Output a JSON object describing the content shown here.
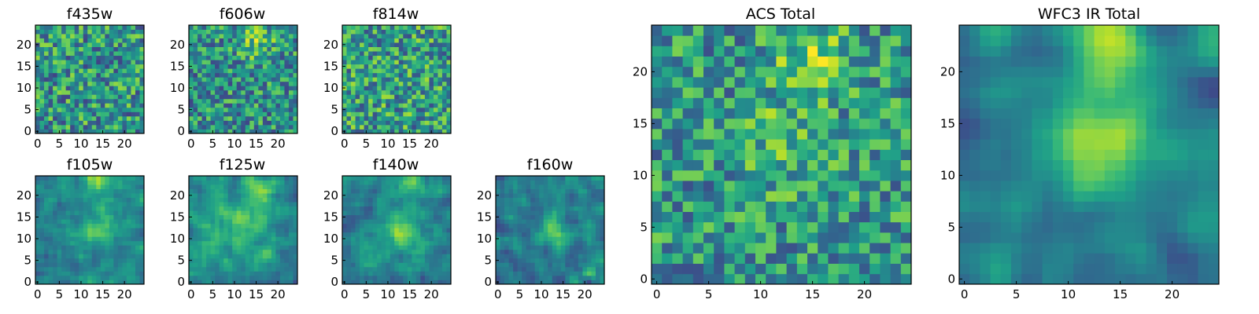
{
  "chart_data": {
    "type": "heatmap",
    "colormap": "viridis",
    "grid_size": 25,
    "panels": [
      {
        "id": "f435w",
        "title": "f435w",
        "x_ticks": [
          0,
          5,
          10,
          15,
          20
        ],
        "y_ticks": [
          0,
          5,
          10,
          15,
          20
        ],
        "xlim": [
          -0.5,
          24.5
        ],
        "ylim": [
          -0.5,
          24.5
        ],
        "peaks": [],
        "smooth": 0,
        "base": 0.52,
        "noise": 0.32,
        "seed": 11
      },
      {
        "id": "f606w",
        "title": "f606w",
        "x_ticks": [
          0,
          5,
          10,
          15,
          20
        ],
        "y_ticks": [
          0,
          5,
          10,
          15,
          20
        ],
        "xlim": [
          -0.5,
          24.5
        ],
        "ylim": [
          -0.5,
          24.5
        ],
        "peaks": [
          [
            15,
            21,
            3,
            0.25
          ]
        ],
        "smooth": 0,
        "base": 0.5,
        "noise": 0.3,
        "seed": 23
      },
      {
        "id": "f814w",
        "title": "f814w",
        "x_ticks": [
          0,
          5,
          10,
          15,
          20
        ],
        "y_ticks": [
          0,
          5,
          10,
          15,
          20
        ],
        "xlim": [
          -0.5,
          24.5
        ],
        "ylim": [
          -0.5,
          24.5
        ],
        "peaks": [],
        "smooth": 0,
        "base": 0.55,
        "noise": 0.32,
        "seed": 37
      },
      {
        "id": "f105w",
        "title": "f105w",
        "x_ticks": [
          0,
          5,
          10,
          15,
          20
        ],
        "y_ticks": [
          0,
          5,
          10,
          15,
          20
        ],
        "xlim": [
          -0.5,
          24.5
        ],
        "ylim": [
          -0.5,
          24.5
        ],
        "peaks": [
          [
            14,
            12,
            3,
            0.3
          ],
          [
            14,
            23,
            2.5,
            0.35
          ]
        ],
        "smooth": 1,
        "base": 0.45,
        "noise": 0.22,
        "seed": 41
      },
      {
        "id": "f125w",
        "title": "f125w",
        "x_ticks": [
          0,
          5,
          10,
          15,
          20
        ],
        "y_ticks": [
          0,
          5,
          10,
          15,
          20
        ],
        "xlim": [
          -0.5,
          24.5
        ],
        "ylim": [
          -0.5,
          24.5
        ],
        "peaks": [
          [
            15,
            22,
            2.5,
            0.35
          ],
          [
            12,
            13,
            5,
            0.2
          ]
        ],
        "smooth": 1,
        "base": 0.48,
        "noise": 0.22,
        "seed": 53
      },
      {
        "id": "f140w",
        "title": "f140w",
        "x_ticks": [
          0,
          5,
          10,
          15,
          20
        ],
        "y_ticks": [
          0,
          5,
          10,
          15,
          20
        ],
        "xlim": [
          -0.5,
          24.5
        ],
        "ylim": [
          -0.5,
          24.5
        ],
        "peaks": [
          [
            13,
            12,
            3.5,
            0.3
          ],
          [
            15,
            23,
            2,
            0.3
          ]
        ],
        "smooth": 1,
        "base": 0.45,
        "noise": 0.22,
        "seed": 67
      },
      {
        "id": "f160w",
        "title": "f160w",
        "x_ticks": [
          0,
          5,
          10,
          15,
          20
        ],
        "y_ticks": [
          0,
          5,
          10,
          15,
          20
        ],
        "xlim": [
          -0.5,
          24.5
        ],
        "ylim": [
          -0.5,
          24.5
        ],
        "peaks": [
          [
            13,
            12,
            2.5,
            0.35
          ],
          [
            21,
            2,
            1,
            0.4
          ]
        ],
        "smooth": 1,
        "base": 0.42,
        "noise": 0.24,
        "seed": 79
      },
      {
        "id": "acs_total",
        "title": "ACS Total",
        "x_ticks": [
          0,
          5,
          10,
          15,
          20
        ],
        "y_ticks": [
          0,
          5,
          10,
          15,
          20
        ],
        "xlim": [
          -0.5,
          24.5
        ],
        "ylim": [
          -0.5,
          24.5
        ],
        "peaks": [
          [
            15,
            21,
            2.5,
            0.3
          ],
          [
            12,
            13,
            3,
            0.15
          ]
        ],
        "smooth": 0,
        "base": 0.52,
        "noise": 0.28,
        "seed": 97
      },
      {
        "id": "wfc3_ir_total",
        "title": "WFC3 IR Total",
        "x_ticks": [
          0,
          5,
          10,
          15,
          20
        ],
        "y_ticks": [
          0,
          5,
          10,
          15,
          20
        ],
        "xlim": [
          -0.5,
          24.5
        ],
        "ylim": [
          -0.5,
          24.5
        ],
        "peaks": [
          [
            14,
            22,
            3,
            0.4
          ],
          [
            13,
            13,
            3.5,
            0.4
          ]
        ],
        "smooth": 2,
        "base": 0.42,
        "noise": 0.2,
        "seed": 113
      }
    ]
  }
}
